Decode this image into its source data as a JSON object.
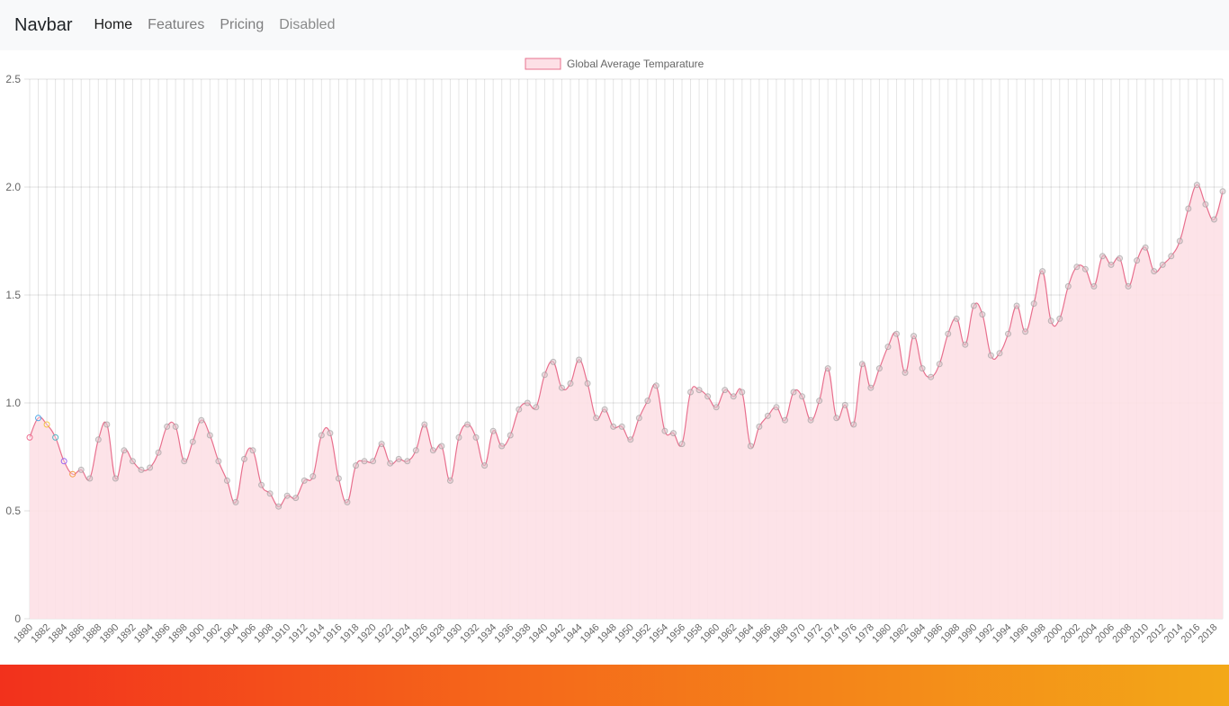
{
  "navbar": {
    "brand": "Navbar",
    "links": [
      {
        "label": "Home",
        "state": "active"
      },
      {
        "label": "Features",
        "state": "normal"
      },
      {
        "label": "Pricing",
        "state": "normal"
      },
      {
        "label": "Disabled",
        "state": "disabled"
      }
    ]
  },
  "chart_data": {
    "type": "line",
    "fill": true,
    "smooth": true,
    "title": "",
    "xlabel": "",
    "ylabel": "",
    "ylim": [
      0,
      2.5
    ],
    "yticks": [
      0,
      0.5,
      1.0,
      1.5,
      2.0,
      2.5
    ],
    "legend_position": "top-center",
    "grid": true,
    "x": [
      1880,
      1881,
      1882,
      1883,
      1884,
      1885,
      1886,
      1887,
      1888,
      1889,
      1890,
      1891,
      1892,
      1893,
      1894,
      1895,
      1896,
      1897,
      1898,
      1899,
      1900,
      1901,
      1902,
      1903,
      1904,
      1905,
      1906,
      1907,
      1908,
      1909,
      1910,
      1911,
      1912,
      1913,
      1914,
      1915,
      1916,
      1917,
      1918,
      1919,
      1920,
      1921,
      1922,
      1923,
      1924,
      1925,
      1926,
      1927,
      1928,
      1929,
      1930,
      1931,
      1932,
      1933,
      1934,
      1935,
      1936,
      1937,
      1938,
      1939,
      1940,
      1941,
      1942,
      1943,
      1944,
      1945,
      1946,
      1947,
      1948,
      1949,
      1950,
      1951,
      1952,
      1953,
      1954,
      1955,
      1956,
      1957,
      1958,
      1959,
      1960,
      1961,
      1962,
      1963,
      1964,
      1965,
      1966,
      1967,
      1968,
      1969,
      1970,
      1971,
      1972,
      1973,
      1974,
      1975,
      1976,
      1977,
      1978,
      1979,
      1980,
      1981,
      1982,
      1983,
      1984,
      1985,
      1986,
      1987,
      1988,
      1989,
      1990,
      1991,
      1992,
      1993,
      1994,
      1995,
      1996,
      1997,
      1998,
      1999,
      2000,
      2001,
      2002,
      2003,
      2004,
      2005,
      2006,
      2007,
      2008,
      2009,
      2010,
      2011,
      2012,
      2013,
      2014,
      2015,
      2016,
      2017,
      2018,
      2019
    ],
    "series": [
      {
        "name": "Global Average Temparature",
        "color": "#e8708e",
        "fill_color": "#fde0e6",
        "values": [
          0.84,
          0.93,
          0.9,
          0.84,
          0.73,
          0.67,
          0.69,
          0.65,
          0.83,
          0.9,
          0.65,
          0.78,
          0.73,
          0.69,
          0.7,
          0.77,
          0.89,
          0.89,
          0.73,
          0.82,
          0.92,
          0.85,
          0.73,
          0.64,
          0.54,
          0.74,
          0.78,
          0.62,
          0.58,
          0.52,
          0.57,
          0.56,
          0.64,
          0.66,
          0.85,
          0.86,
          0.65,
          0.54,
          0.71,
          0.73,
          0.73,
          0.81,
          0.72,
          0.74,
          0.73,
          0.78,
          0.9,
          0.78,
          0.8,
          0.64,
          0.84,
          0.9,
          0.84,
          0.71,
          0.87,
          0.8,
          0.85,
          0.97,
          1.0,
          0.98,
          1.13,
          1.19,
          1.07,
          1.09,
          1.2,
          1.09,
          0.93,
          0.97,
          0.89,
          0.89,
          0.83,
          0.93,
          1.01,
          1.08,
          0.87,
          0.86,
          0.81,
          1.05,
          1.06,
          1.03,
          0.98,
          1.06,
          1.03,
          1.05,
          0.8,
          0.89,
          0.94,
          0.98,
          0.92,
          1.05,
          1.03,
          0.92,
          1.01,
          1.16,
          0.93,
          0.99,
          0.9,
          1.18,
          1.07,
          1.16,
          1.26,
          1.32,
          1.14,
          1.31,
          1.16,
          1.12,
          1.18,
          1.32,
          1.39,
          1.27,
          1.45,
          1.41,
          1.22,
          1.23,
          1.32,
          1.45,
          1.33,
          1.46,
          1.61,
          1.38,
          1.39,
          1.54,
          1.63,
          1.62,
          1.54,
          1.68,
          1.64,
          1.67,
          1.54,
          1.66,
          1.72,
          1.61,
          1.64,
          1.68,
          1.75,
          1.9,
          2.01,
          1.92,
          1.85,
          1.98
        ]
      }
    ],
    "highlight_point_colors": [
      "#ef6c8f",
      "#4fa7e8",
      "#f5c343",
      "#55b3c3",
      "#9a62f0",
      "#f59a43"
    ]
  }
}
